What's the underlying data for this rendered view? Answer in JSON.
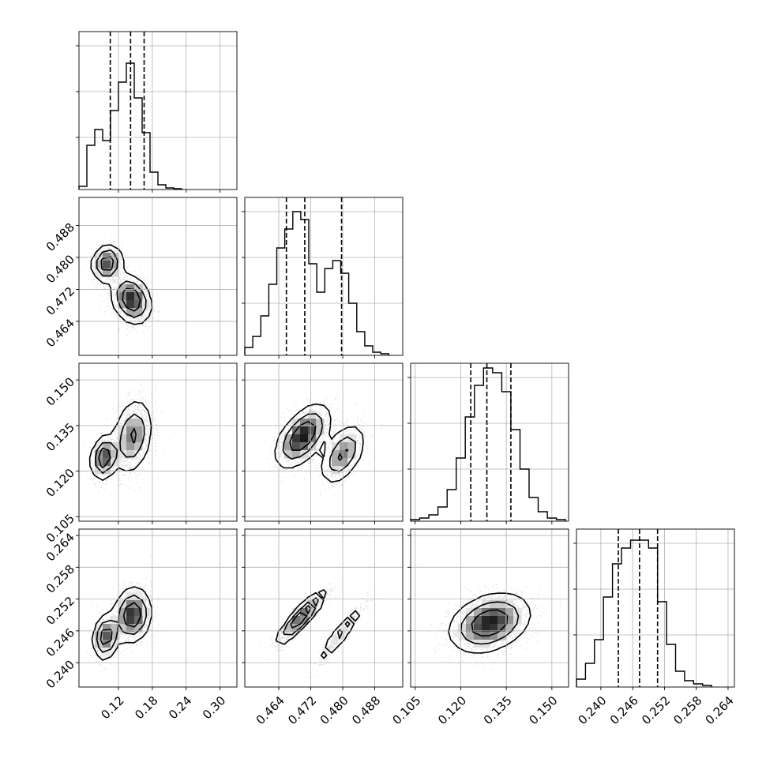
{
  "chart_data": {
    "type": "corner",
    "grid": true,
    "params": [
      {
        "range": [
          0.05,
          0.33
        ],
        "ticks": [
          0.12,
          0.18,
          0.24,
          0.3
        ],
        "tick_labels": [
          "0.12",
          "0.18",
          "0.24",
          "0.30"
        ]
      },
      {
        "range": [
          0.4555,
          0.495
        ],
        "ticks": [
          0.464,
          0.472,
          0.48,
          0.488
        ],
        "tick_labels": [
          "0.464",
          "0.472",
          "0.480",
          "0.488"
        ]
      },
      {
        "range": [
          0.1035,
          0.1555
        ],
        "ticks": [
          0.105,
          0.12,
          0.135,
          0.15
        ],
        "tick_labels": [
          "0.105",
          "0.120",
          "0.135",
          "0.150"
        ]
      },
      {
        "range": [
          0.2354,
          0.2652
        ],
        "ticks": [
          0.24,
          0.246,
          0.252,
          0.258,
          0.264
        ],
        "tick_labels": [
          "0.240",
          "0.246",
          "0.252",
          "0.258",
          "0.264"
        ]
      }
    ],
    "quantiles": [
      [
        0.1055,
        0.1415,
        0.1655
      ],
      [
        0.4659,
        0.4705,
        0.4797
      ],
      [
        0.1233,
        0.1286,
        0.1365
      ],
      [
        0.2433,
        0.2473,
        0.2507
      ]
    ],
    "histograms": [
      {
        "edges": [
          0.05,
          0.064,
          0.078,
          0.092,
          0.106,
          0.12,
          0.134,
          0.148,
          0.162,
          0.176,
          0.19,
          0.204,
          0.218,
          0.232
        ],
        "counts": [
          0.02,
          0.28,
          0.38,
          0.31,
          0.5,
          0.68,
          0.8,
          0.58,
          0.36,
          0.11,
          0.03,
          0.01,
          0.005
        ]
      },
      {
        "edges": [
          0.4555,
          0.4575,
          0.4595,
          0.4615,
          0.4635,
          0.4655,
          0.4675,
          0.4695,
          0.4715,
          0.4735,
          0.4755,
          0.4775,
          0.4795,
          0.4815,
          0.4835,
          0.4855,
          0.4875,
          0.4895,
          0.4915
        ],
        "counts": [
          0.05,
          0.12,
          0.25,
          0.45,
          0.68,
          0.8,
          0.91,
          0.86,
          0.58,
          0.4,
          0.55,
          0.6,
          0.52,
          0.33,
          0.15,
          0.06,
          0.02,
          0.01
        ]
      },
      {
        "edges": [
          0.1035,
          0.1065,
          0.1095,
          0.1125,
          0.1155,
          0.1185,
          0.1215,
          0.1245,
          0.1275,
          0.1305,
          0.1335,
          0.1365,
          0.1395,
          0.1425,
          0.1455,
          0.1485,
          0.1515,
          0.1545
        ],
        "counts": [
          0.01,
          0.02,
          0.04,
          0.09,
          0.2,
          0.4,
          0.66,
          0.86,
          0.97,
          0.94,
          0.82,
          0.58,
          0.33,
          0.15,
          0.06,
          0.02,
          0.01
        ]
      },
      {
        "edges": [
          0.2354,
          0.2371,
          0.2388,
          0.2405,
          0.2422,
          0.2439,
          0.2456,
          0.2473,
          0.249,
          0.2507,
          0.2524,
          0.2541,
          0.2558,
          0.2575,
          0.2592,
          0.2609
        ],
        "counts": [
          0.05,
          0.15,
          0.3,
          0.57,
          0.78,
          0.88,
          0.93,
          0.93,
          0.88,
          0.54,
          0.27,
          0.1,
          0.04,
          0.02,
          0.01
        ]
      }
    ],
    "clusters": {
      "1-0": [
        {
          "c": [
            0.1,
            0.4785
          ],
          "s": [
            0.013,
            0.0023
          ],
          "r": 0.1,
          "w": 0.35
        },
        {
          "c": [
            0.143,
            0.4695
          ],
          "s": [
            0.017,
            0.003
          ],
          "r": -0.25,
          "w": 0.65
        }
      ],
      "2-0": [
        {
          "c": [
            0.095,
            0.1245
          ],
          "s": [
            0.011,
            0.0035
          ],
          "r": 0.2,
          "w": 0.35
        },
        {
          "c": [
            0.145,
            0.1315
          ],
          "s": [
            0.017,
            0.006
          ],
          "r": 0.25,
          "w": 0.65
        }
      ],
      "2-1": [
        {
          "c": [
            0.47,
            0.1315
          ],
          "s": [
            0.0033,
            0.005
          ],
          "r": 0.55,
          "w": 0.65
        },
        {
          "c": [
            0.48,
            0.1255
          ],
          "s": [
            0.0027,
            0.0048
          ],
          "r": 0.5,
          "w": 0.35
        }
      ],
      "3-0": [
        {
          "c": [
            0.098,
            0.2449
          ],
          "s": [
            0.011,
            0.0021
          ],
          "r": 0.15,
          "w": 0.35
        },
        {
          "c": [
            0.145,
            0.249
          ],
          "s": [
            0.016,
            0.0025
          ],
          "r": 0.1,
          "w": 0.65
        }
      ],
      "3-1": [
        {
          "c": [
            0.4695,
            0.2485
          ],
          "s": [
            0.003,
            0.0025
          ],
          "r": 0.9,
          "w": 0.65
        },
        {
          "c": [
            0.4795,
            0.2455
          ],
          "s": [
            0.0028,
            0.0027
          ],
          "r": 0.95,
          "w": 0.35
        }
      ],
      "3-2": [
        {
          "c": [
            0.1295,
            0.2475
          ],
          "s": [
            0.0065,
            0.0027
          ],
          "r": 0.3,
          "w": 1.0
        }
      ]
    }
  }
}
